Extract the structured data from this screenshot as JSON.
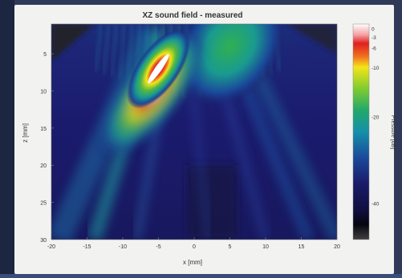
{
  "chart_data": {
    "type": "heatmap",
    "title": "XZ sound field - measured",
    "xlabel": "x [mm]",
    "ylabel": "z [mm]",
    "xlim": [
      -20,
      20
    ],
    "ylim": [
      30,
      1
    ],
    "xticks": [
      "-20",
      "-15",
      "-10",
      "-5",
      "0",
      "5",
      "10",
      "15",
      "20"
    ],
    "yticks": [
      "5",
      "10",
      "15",
      "20",
      "25",
      "30"
    ],
    "colorbar": {
      "label": "Pressure [dB]",
      "range": [
        -40,
        0
      ],
      "ticks": [
        "0",
        "-3",
        "-6",
        "-10",
        "-20",
        "-40"
      ]
    },
    "features": [
      {
        "name": "main lobe peak",
        "x": -5,
        "z": 7,
        "level_db": 0
      },
      {
        "name": "secondary lobe",
        "x": 5,
        "z": 4,
        "level_db": -10
      }
    ],
    "colors": {
      "background_level": "#1d1d6e",
      "peak": "#ffffff",
      "red": "#e02020",
      "yellow": "#f4e41a",
      "green": "#32b04a",
      "cyan": "#18a8a0",
      "blue": "#1a4a9a",
      "navy": "#1b1b6a"
    }
  }
}
